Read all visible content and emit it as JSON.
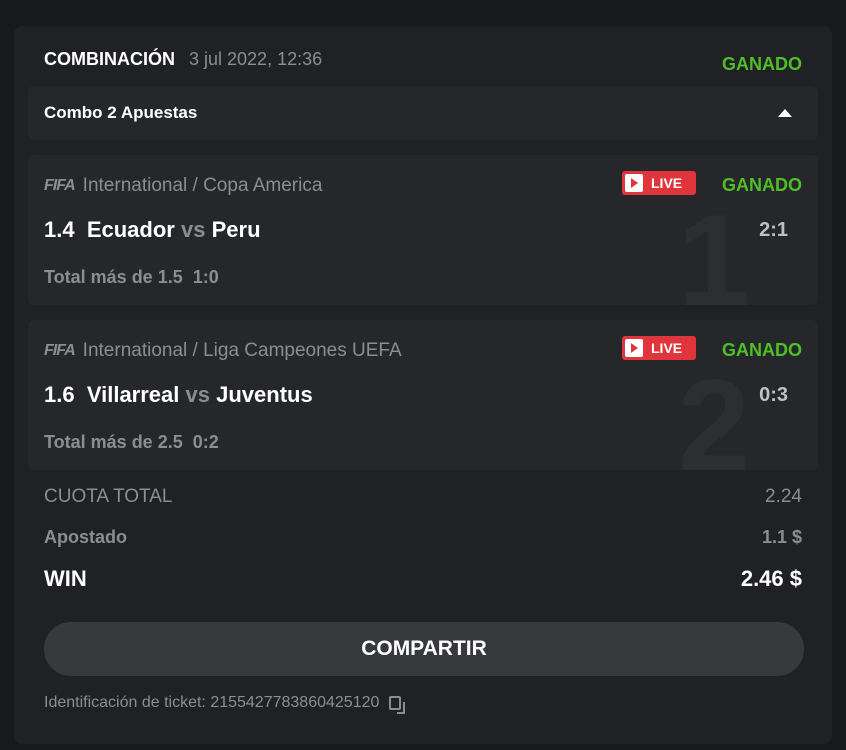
{
  "header": {
    "title": "COMBINACIÓN",
    "date": "3 jul 2022, 12:36",
    "status": "GANADO"
  },
  "combo": {
    "label": "Combo 2 Apuestas"
  },
  "bets": [
    {
      "index": "1",
      "logo": "FIFA",
      "league": "International / Copa America",
      "live": "LIVE",
      "status": "GANADO",
      "odds": "1.4",
      "home": "Ecuador",
      "vs": "vs",
      "away": "Peru",
      "score": "2:1",
      "market": "Total más de 1.5",
      "market_score": "1:0"
    },
    {
      "index": "2",
      "logo": "FIFA",
      "league": "International / Liga Campeones UEFA",
      "live": "LIVE",
      "status": "GANADO",
      "odds": "1.6",
      "home": "Villarreal",
      "vs": "vs",
      "away": "Juventus",
      "score": "0:3",
      "market": "Total más de 2.5",
      "market_score": "0:2"
    }
  ],
  "summary": {
    "total_odds_label": "CUOTA TOTAL",
    "total_odds": "2.24",
    "stake_label": "Apostado",
    "stake": "1.1 $",
    "win_label": "WIN",
    "win": "2.46 $"
  },
  "share_button": "COMPARTIR",
  "ticket": {
    "label": "Identificación de ticket: 2155427783860425120"
  },
  "colors": {
    "green": "#4fbf26",
    "live": "#e0353c"
  }
}
